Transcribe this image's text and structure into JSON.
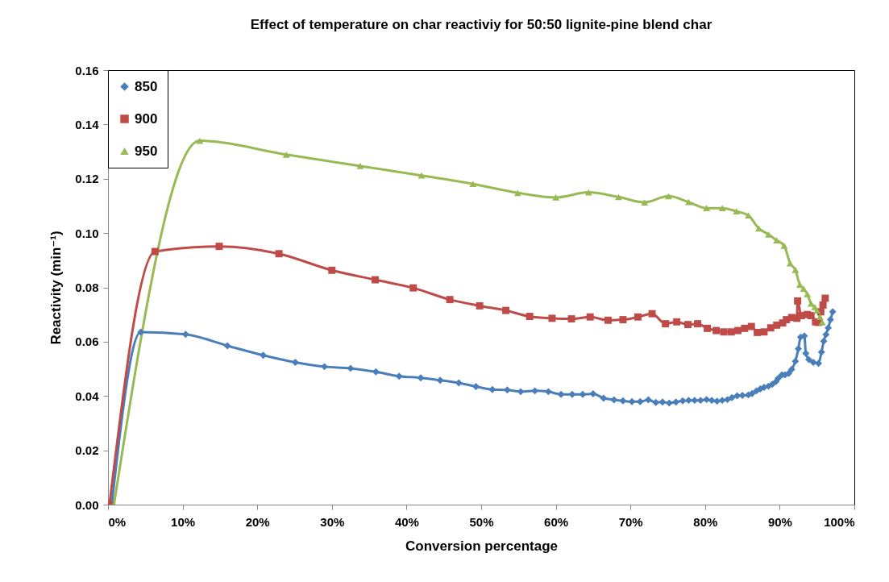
{
  "chart_data": {
    "type": "line",
    "title": "Effect of temperature on char reactiviy for 50:50 lignite-pine blend char",
    "xlabel": "Conversion percentage",
    "ylabel": "Reactivity (min⁻¹)",
    "xlim": [
      0,
      100
    ],
    "xticks": [
      {
        "value": 0,
        "label": "0%"
      },
      {
        "value": 10,
        "label": "10%"
      },
      {
        "value": 20,
        "label": "20%"
      },
      {
        "value": 30,
        "label": "30%"
      },
      {
        "value": 40,
        "label": "40%"
      },
      {
        "value": 50,
        "label": "50%"
      },
      {
        "value": 60,
        "label": "60%"
      },
      {
        "value": 70,
        "label": "70%"
      },
      {
        "value": 80,
        "label": "80%"
      },
      {
        "value": 90,
        "label": "90%"
      },
      {
        "value": 100,
        "label": "100%"
      }
    ],
    "ylim": [
      0,
      0.16
    ],
    "yticks": [
      {
        "value": 0,
        "label": "0.00"
      },
      {
        "value": 0.02,
        "label": "0.02"
      },
      {
        "value": 0.04,
        "label": "0.04"
      },
      {
        "value": 0.06,
        "label": "0.06"
      },
      {
        "value": 0.08,
        "label": "0.08"
      },
      {
        "value": 0.1,
        "label": "0.10"
      },
      {
        "value": 0.12,
        "label": "0.12"
      },
      {
        "value": 0.14,
        "label": "0.14"
      },
      {
        "value": 0.16,
        "label": "0.16"
      }
    ],
    "grid": false,
    "legend": "top left",
    "series": [
      {
        "name": "850",
        "color": "#4a7ebb",
        "marker": "diamond",
        "x": [
          0.5,
          4.4,
          10.4,
          16.0,
          20.8,
          25.1,
          29.0,
          32.5,
          35.9,
          39.0,
          41.9,
          44.5,
          47.0,
          49.3,
          51.5,
          53.5,
          55.3,
          57.2,
          59.0,
          60.7,
          62.2,
          63.6,
          65.0,
          66.4,
          67.8,
          69.0,
          70.2,
          71.3,
          72.4,
          73.4,
          74.3,
          75.2,
          76.1,
          77.0,
          77.8,
          78.6,
          79.4,
          80.2,
          80.9,
          81.6,
          82.3,
          83.0,
          83.6,
          84.3,
          85.0,
          85.8,
          86.3,
          86.9,
          87.4,
          87.9,
          88.5,
          89.0,
          89.5,
          89.8,
          90.3,
          90.7,
          91.2,
          91.6,
          92.1,
          92.5,
          92.8,
          93.3,
          93.5,
          93.9,
          94.5,
          95.2,
          95.6,
          95.9,
          96.2,
          96.5,
          96.8,
          97.1
        ],
        "values": [
          0,
          0.0635,
          0.0627,
          0.0585,
          0.055,
          0.0524,
          0.0508,
          0.0502,
          0.0489,
          0.0473,
          0.0467,
          0.0458,
          0.0448,
          0.0435,
          0.0424,
          0.0422,
          0.0416,
          0.0419,
          0.0416,
          0.0406,
          0.0406,
          0.0406,
          0.0408,
          0.0392,
          0.0386,
          0.0382,
          0.0379,
          0.0379,
          0.0386,
          0.0376,
          0.0378,
          0.0374,
          0.0378,
          0.0382,
          0.0384,
          0.0384,
          0.0384,
          0.0387,
          0.0384,
          0.0381,
          0.0384,
          0.0387,
          0.0394,
          0.0401,
          0.0402,
          0.0404,
          0.0409,
          0.0419,
          0.0426,
          0.0432,
          0.0436,
          0.0443,
          0.0453,
          0.0465,
          0.0478,
          0.0478,
          0.0483,
          0.0498,
          0.0528,
          0.0574,
          0.0617,
          0.0621,
          0.0557,
          0.0534,
          0.0524,
          0.052,
          0.0562,
          0.0602,
          0.0626,
          0.0651,
          0.0681,
          0.071
        ]
      },
      {
        "name": "900",
        "color": "#be4b48",
        "marker": "square",
        "x": [
          0.2,
          6.3,
          14.9,
          22.9,
          30.0,
          35.8,
          40.9,
          45.8,
          49.8,
          53.3,
          56.5,
          59.5,
          62.1,
          64.6,
          67.0,
          69.0,
          71.0,
          72.9,
          74.7,
          76.2,
          77.7,
          79.0,
          80.3,
          81.5,
          82.5,
          83.5,
          84.4,
          85.3,
          86.2,
          87.0,
          87.9,
          88.8,
          89.6,
          90.4,
          90.9,
          91.6,
          92.3,
          92.4,
          92.9,
          93.7,
          94.2,
          94.8,
          95.2,
          95.5,
          95.8,
          96.1
        ],
        "values": [
          0,
          0.0932,
          0.0951,
          0.0924,
          0.0863,
          0.0828,
          0.0798,
          0.0755,
          0.0732,
          0.0715,
          0.0693,
          0.0686,
          0.0684,
          0.0691,
          0.0679,
          0.0681,
          0.0691,
          0.0703,
          0.0666,
          0.0673,
          0.0663,
          0.0666,
          0.0649,
          0.0641,
          0.0636,
          0.0636,
          0.0641,
          0.0649,
          0.0656,
          0.0634,
          0.0636,
          0.0651,
          0.0661,
          0.0669,
          0.0681,
          0.0689,
          0.0686,
          0.075,
          0.0696,
          0.07,
          0.0696,
          0.0673,
          0.0671,
          0.071,
          0.0735,
          0.076
        ]
      },
      {
        "name": "950",
        "color": "#98b954",
        "marker": "triangle",
        "x": [
          0.8,
          12.3,
          23.9,
          33.8,
          42.0,
          48.9,
          54.9,
          60.0,
          64.4,
          68.4,
          71.9,
          75.1,
          77.8,
          80.2,
          82.3,
          84.2,
          85.8,
          87.2,
          88.5,
          89.6,
          90.6,
          91.4,
          92.1,
          92.7,
          93.2,
          93.7,
          94.2,
          94.7,
          95.0,
          95.4,
          95.7
        ],
        "values": [
          0,
          0.134,
          0.1289,
          0.1247,
          0.1212,
          0.1181,
          0.1148,
          0.1131,
          0.115,
          0.1133,
          0.1113,
          0.1136,
          0.1114,
          0.1092,
          0.1092,
          0.108,
          0.1065,
          0.1017,
          0.0995,
          0.0973,
          0.0953,
          0.0889,
          0.0864,
          0.081,
          0.0795,
          0.0775,
          0.074,
          0.0728,
          0.0715,
          0.0691,
          0.0671
        ]
      }
    ]
  }
}
